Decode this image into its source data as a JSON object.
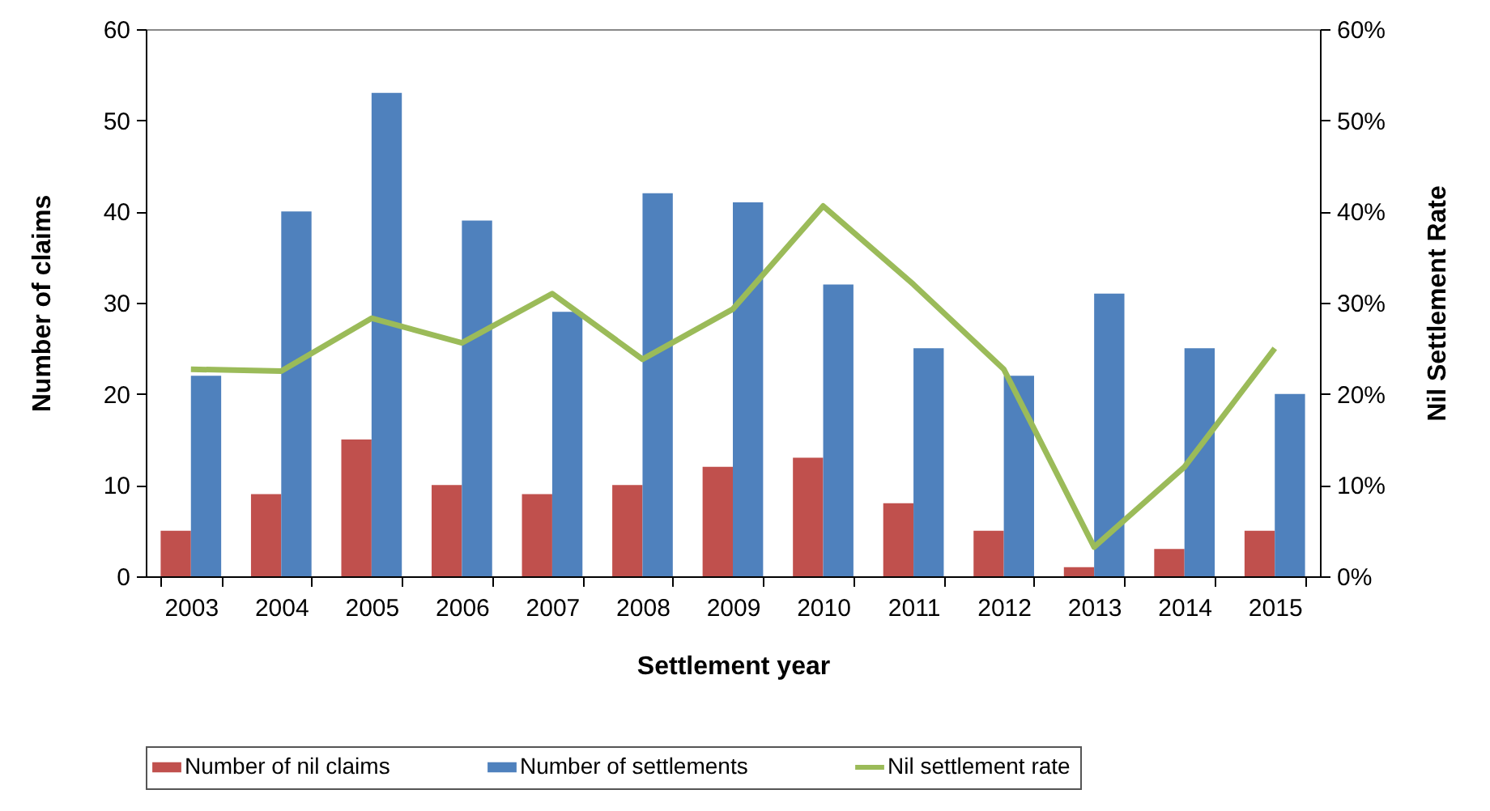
{
  "chart_data": {
    "type": "bar",
    "xlabel": "Settlement year",
    "ylabel": "Number of claims",
    "y2label": "Nil Settlement Rate",
    "categories": [
      "2003",
      "2004",
      "2005",
      "2006",
      "2007",
      "2008",
      "2009",
      "2010",
      "2011",
      "2012",
      "2013",
      "2014",
      "2015"
    ],
    "series": [
      {
        "name": "Number of nil claims",
        "color": "#c0504d",
        "values": [
          5,
          9,
          15,
          10,
          9,
          10,
          12,
          13,
          8,
          5,
          1,
          3,
          5
        ]
      },
      {
        "name": "Number of settlements",
        "color": "#4f81bd",
        "values": [
          22,
          40,
          53,
          39,
          29,
          42,
          41,
          32,
          25,
          22,
          31,
          25,
          20
        ]
      },
      {
        "name": "Nil settlement rate",
        "type": "line",
        "axis": "y2",
        "color": "#9bbb59",
        "values": [
          22.7,
          22.5,
          28.3,
          25.6,
          31.0,
          23.8,
          29.3,
          40.6,
          32.0,
          22.7,
          3.2,
          12.0,
          25.0
        ]
      }
    ],
    "ylim": [
      0,
      60
    ],
    "yticks": [
      0,
      10,
      20,
      30,
      40,
      50,
      60
    ],
    "y2lim": [
      0,
      60
    ],
    "y2ticks": [
      {
        "value": 0,
        "label": "0%"
      },
      {
        "value": 10,
        "label": "10%"
      },
      {
        "value": 20,
        "label": "20%"
      },
      {
        "value": 30,
        "label": "30%"
      },
      {
        "value": 40,
        "label": "40%"
      },
      {
        "value": 50,
        "label": "50%"
      },
      {
        "value": 60,
        "label": "60%"
      }
    ],
    "legend": "bottom"
  }
}
